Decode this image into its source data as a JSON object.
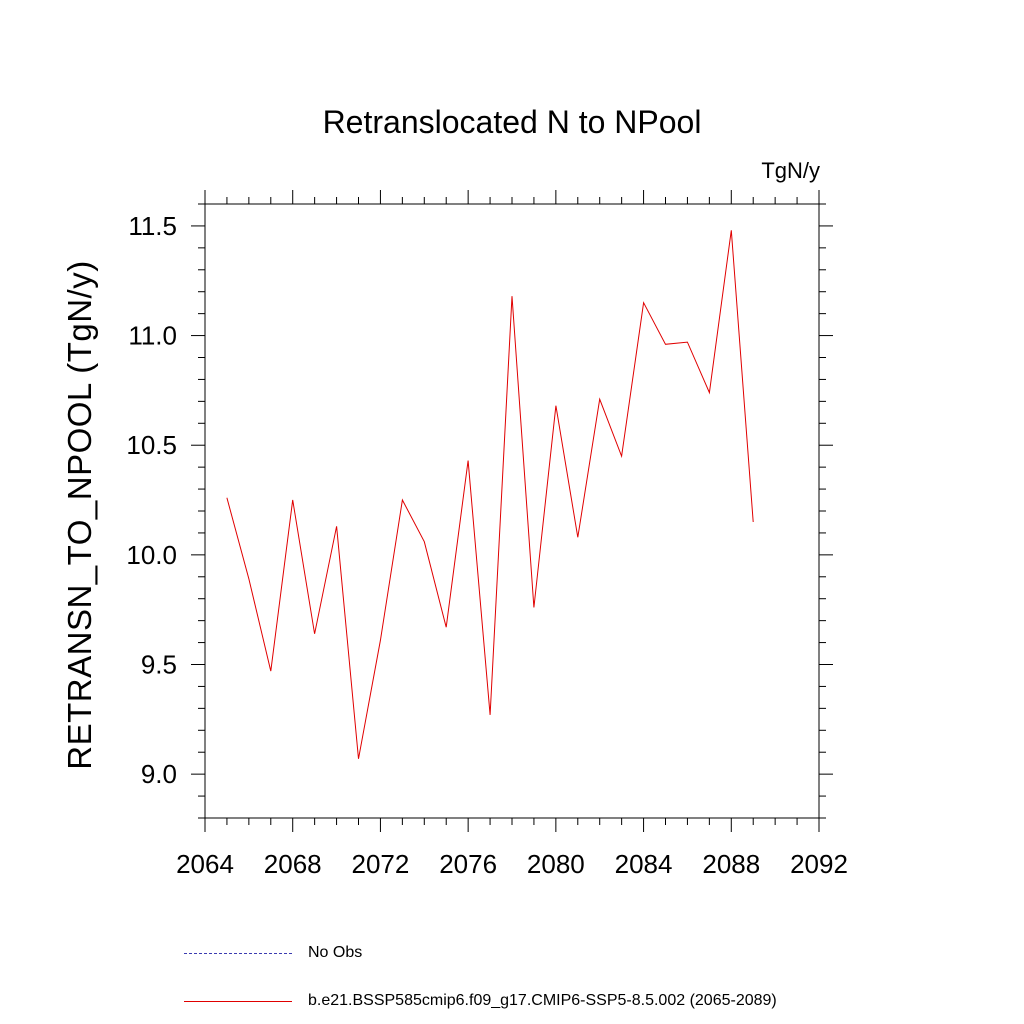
{
  "chart_data": {
    "type": "line",
    "title": "Retranslocated N to NPool",
    "units": "TgN/y",
    "ylabel": "RETRANSN_TO_NPOOL  (TgN/y)",
    "xlabel": "",
    "xlim": [
      2064,
      2092
    ],
    "ylim": [
      8.8,
      11.6
    ],
    "x_ticks": [
      2064,
      2068,
      2072,
      2076,
      2080,
      2084,
      2088,
      2092
    ],
    "y_ticks": [
      9.0,
      9.5,
      10.0,
      10.5,
      11.0,
      11.5
    ],
    "x_tick_labels": [
      "2064",
      "2068",
      "2072",
      "2076",
      "2080",
      "2084",
      "2088",
      "2092"
    ],
    "y_tick_labels": [
      "9.0",
      "9.5",
      "10.0",
      "10.5",
      "11.0",
      "11.5"
    ],
    "grid": false,
    "series": [
      {
        "name": "b.e21.BSSP585cmip6.f09_g17.CMIP6-SSP5-8.5.002 (2065-2089)",
        "color": "#e00000",
        "x": [
          2065,
          2066,
          2067,
          2068,
          2069,
          2070,
          2071,
          2072,
          2073,
          2074,
          2075,
          2076,
          2077,
          2078,
          2079,
          2080,
          2081,
          2082,
          2083,
          2084,
          2085,
          2086,
          2087,
          2088,
          2089
        ],
        "y": [
          10.26,
          9.89,
          9.47,
          10.25,
          9.64,
          10.13,
          9.07,
          9.61,
          10.25,
          10.06,
          9.67,
          10.43,
          9.27,
          11.18,
          9.76,
          10.68,
          10.08,
          10.71,
          10.45,
          11.15,
          10.96,
          10.97,
          10.74,
          11.48,
          10.15
        ]
      }
    ],
    "legend": {
      "placement": "bottom",
      "entries": [
        {
          "label": "No Obs",
          "style": "dashed",
          "color": "#3b3bb0"
        },
        {
          "label": "b.e21.BSSP585cmip6.f09_g17.CMIP6-SSP5-8.5.002 (2065-2089)",
          "style": "solid",
          "color": "#e00000"
        }
      ]
    }
  }
}
